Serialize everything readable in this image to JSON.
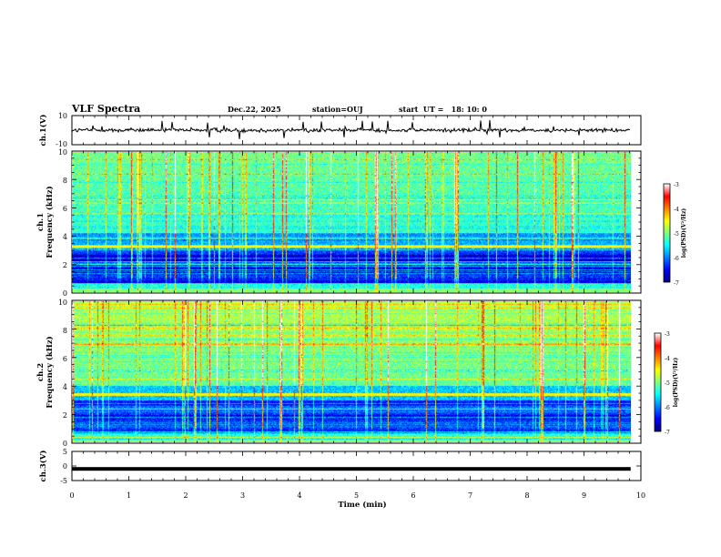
{
  "chart_data": {
    "type": "heatmap",
    "header": {
      "title": "VLF Spectra",
      "date": "Dec.22, 2025",
      "station": "station=OUJ",
      "start_ut": "start  UT =   18: 10: 0"
    },
    "x_axis": {
      "label": "Time  (min)",
      "range": [
        0,
        10
      ],
      "ticks": [
        "0",
        "1",
        "2",
        "3",
        "4",
        "5",
        "6",
        "7",
        "8",
        "9",
        "10"
      ]
    },
    "panels": [
      {
        "id": "ch1-waveform",
        "type": "line",
        "ylabel": "ch.1(V)",
        "ylim": [
          -10,
          10
        ],
        "yticks": [
          "10",
          "-10"
        ],
        "mean_value": 0,
        "data_end_min": 9.82
      },
      {
        "id": "ch1-spectrogram",
        "type": "heatmap",
        "ylabel_line1": "ch.1",
        "ylabel_line2": "Frequency  (kHz)",
        "ylim": [
          0,
          10
        ],
        "yticks": [
          "0",
          "2",
          "4",
          "6",
          "8",
          "10"
        ],
        "strong_band_khz": 3.3,
        "data_end_min": 9.82,
        "colorbar": {
          "label": "log(PSD)(V²/Hz)",
          "range": [
            -7,
            -3
          ],
          "ticks": [
            "-3",
            "-4",
            "-5",
            "-6",
            "-7"
          ]
        }
      },
      {
        "id": "ch2-spectrogram",
        "type": "heatmap",
        "ylabel_line1": "ch.2",
        "ylabel_line2": "Frequency  (kHz)",
        "ylim": [
          0,
          10
        ],
        "yticks": [
          "0",
          "2",
          "4",
          "6",
          "8",
          "10"
        ],
        "strong_band_khz": 3.4,
        "data_end_min": 9.82,
        "colorbar": {
          "label": "log(PSD)(V²/Hz)",
          "range": [
            -7,
            -3
          ],
          "ticks": [
            "-3",
            "-4",
            "-5",
            "-6",
            "-7"
          ]
        }
      },
      {
        "id": "ch3-waveform",
        "type": "line",
        "ylabel": "ch.3(V)",
        "ylim": [
          -5,
          5
        ],
        "yticks": [
          "5",
          "0",
          "-5"
        ],
        "mean_value": -1.0,
        "data_end_min": 9.82
      }
    ],
    "colormap": [
      "#000080",
      "#0000ff",
      "#0080ff",
      "#00ffff",
      "#80ff80",
      "#ffff00",
      "#ff8000",
      "#ff0000",
      "#ffffff"
    ]
  }
}
